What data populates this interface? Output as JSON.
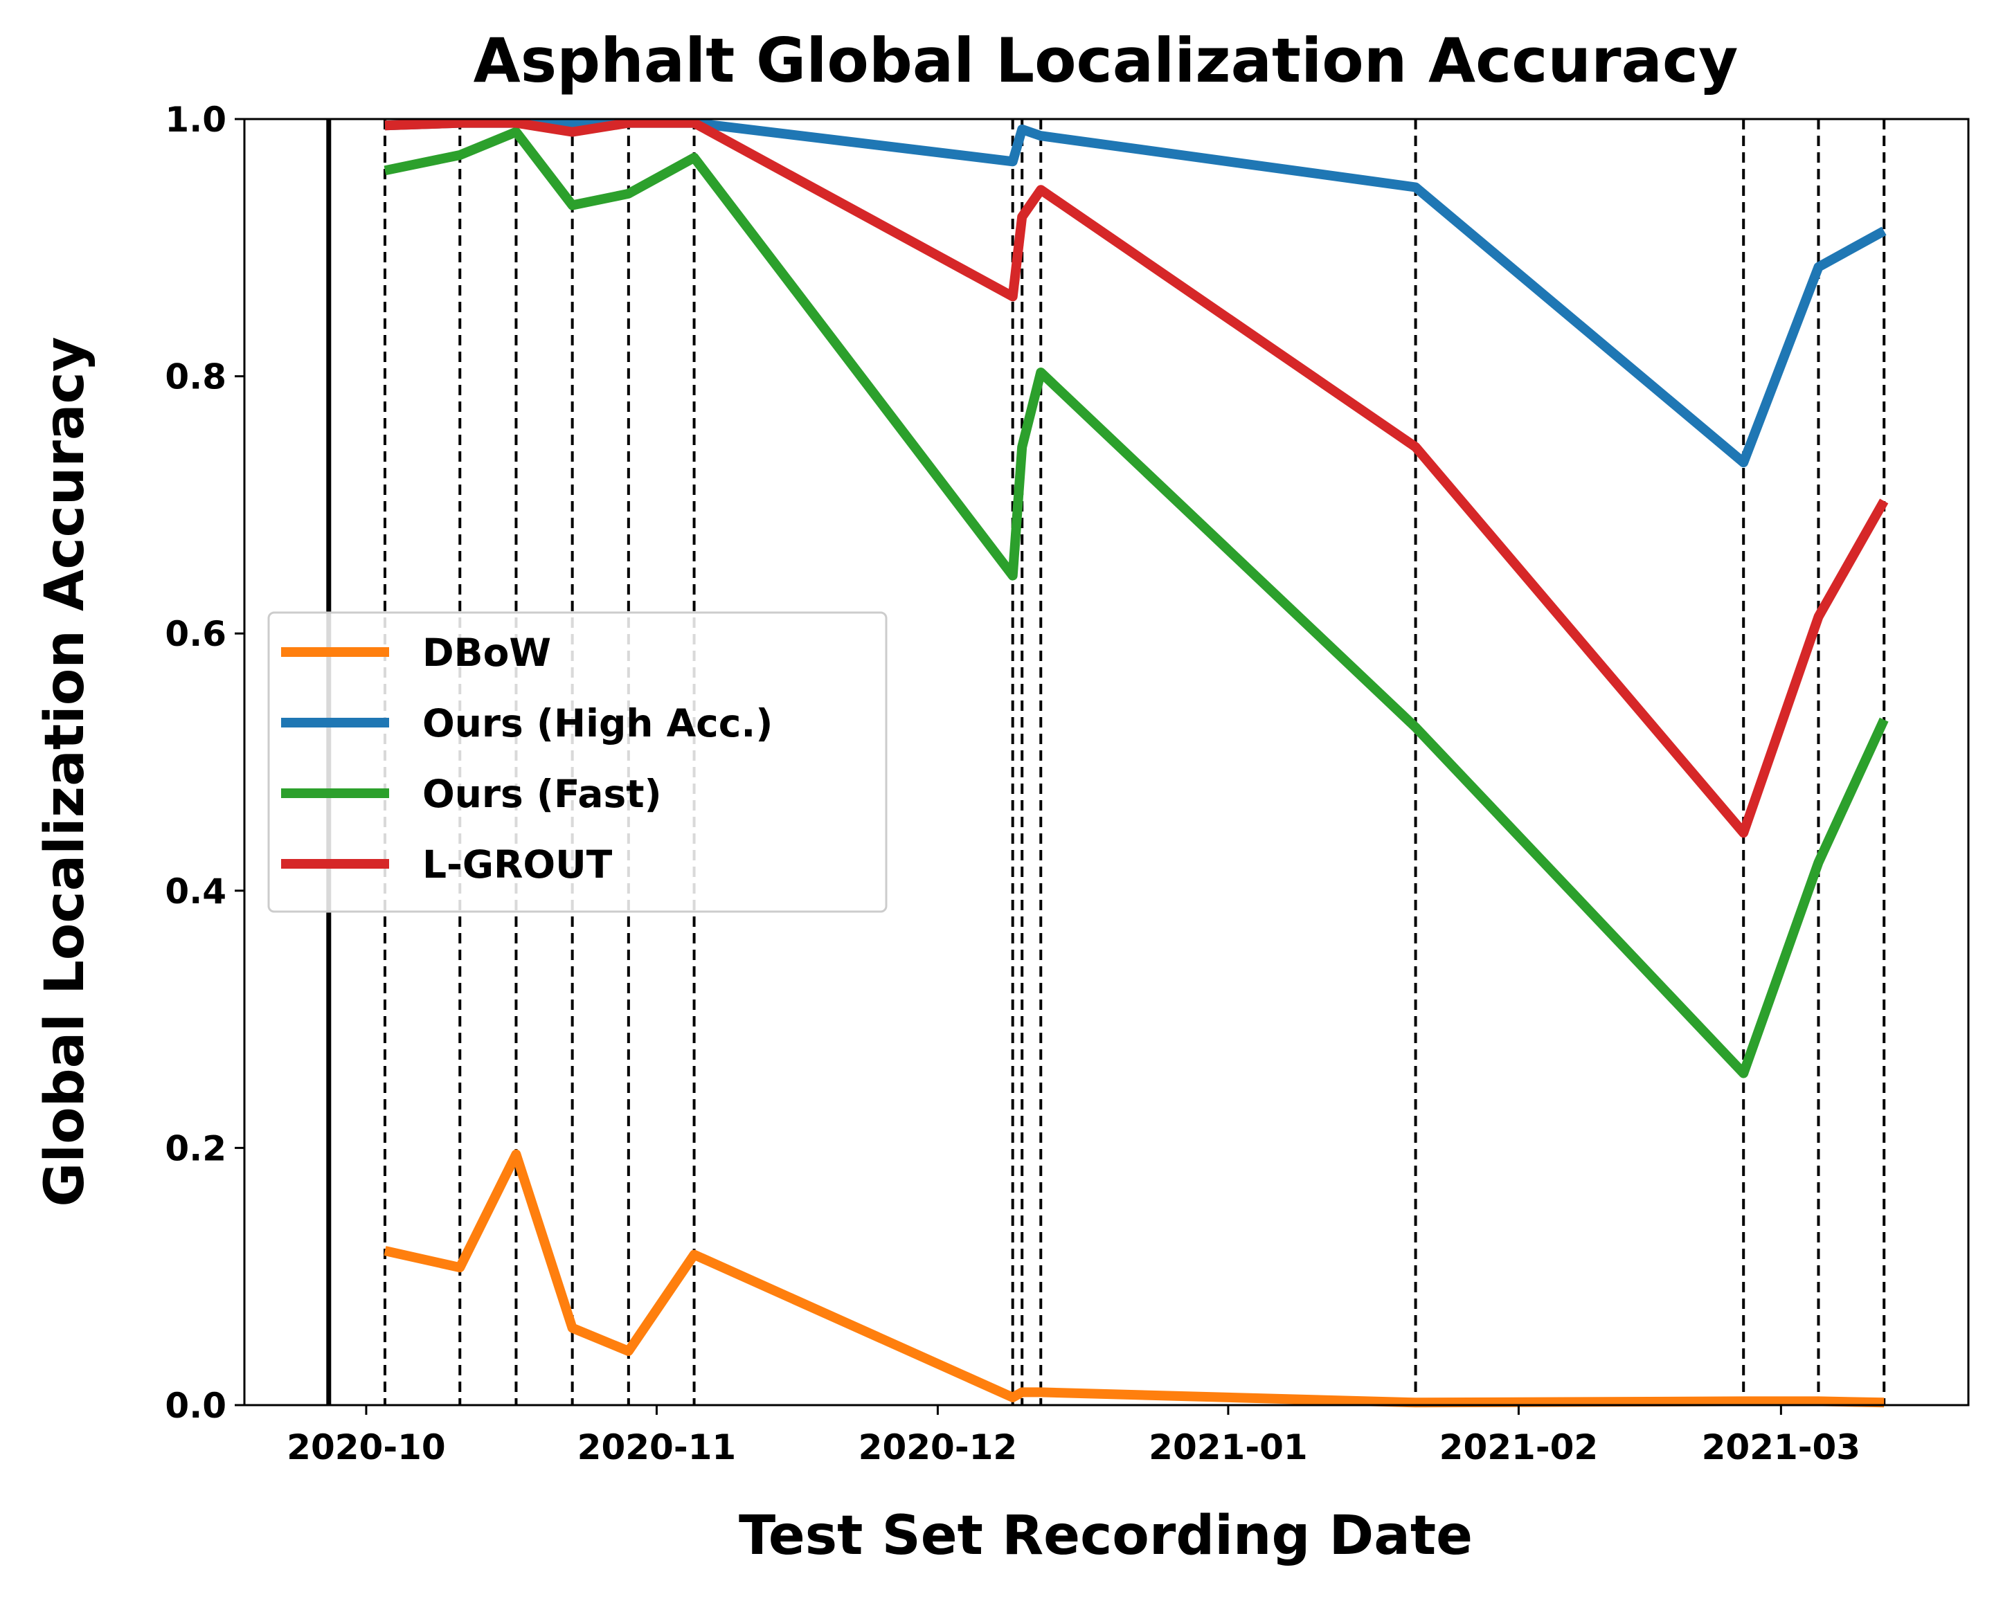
{
  "chart_data": {
    "type": "line",
    "title": "Asphalt Global Localization Accuracy",
    "xlabel": "Test Set Recording Date",
    "ylabel": "Global Localization Accuracy",
    "xlim": [
      "2020-09-18",
      "2021-03-21"
    ],
    "ylim": [
      0,
      1
    ],
    "x_ticks": [
      "2020-10",
      "2020-11",
      "2020-12",
      "2021-01",
      "2021-02",
      "2021-03"
    ],
    "y_ticks": [
      "0.0",
      "0.2",
      "0.4",
      "0.6",
      "0.8",
      "1.0"
    ],
    "grid": false,
    "legend_position": "center-left",
    "training_date": "2020-09-27",
    "x": [
      "2020-10-03",
      "2020-10-11",
      "2020-10-17",
      "2020-10-23",
      "2020-10-29",
      "2020-11-05",
      "2020-12-09",
      "2020-12-10",
      "2020-12-12",
      "2021-01-21",
      "2021-02-25",
      "2021-03-05",
      "2021-03-12"
    ],
    "series": [
      {
        "name": "DBoW",
        "color": "#ff7f0e",
        "values": [
          0.12,
          0.107,
          0.195,
          0.06,
          0.042,
          0.117,
          0.006,
          0.01,
          0.01,
          0.002,
          0.003,
          0.003,
          0.002
        ]
      },
      {
        "name": "Ours (High Acc.)",
        "color": "#1f77b4",
        "values": [
          0.995,
          0.997,
          0.997,
          0.996,
          0.997,
          0.997,
          0.967,
          0.992,
          0.987,
          0.947,
          0.733,
          0.885,
          0.913
        ]
      },
      {
        "name": "Ours (Fast)",
        "color": "#2ca02c",
        "values": [
          0.96,
          0.972,
          0.99,
          0.933,
          0.942,
          0.97,
          0.645,
          0.745,
          0.803,
          0.527,
          0.258,
          0.422,
          0.533
        ]
      },
      {
        "name": "L-GROUT",
        "color": "#d62728",
        "values": [
          0.995,
          0.997,
          0.997,
          0.99,
          0.997,
          0.997,
          0.862,
          0.924,
          0.945,
          0.745,
          0.445,
          0.613,
          0.703
        ]
      }
    ]
  }
}
